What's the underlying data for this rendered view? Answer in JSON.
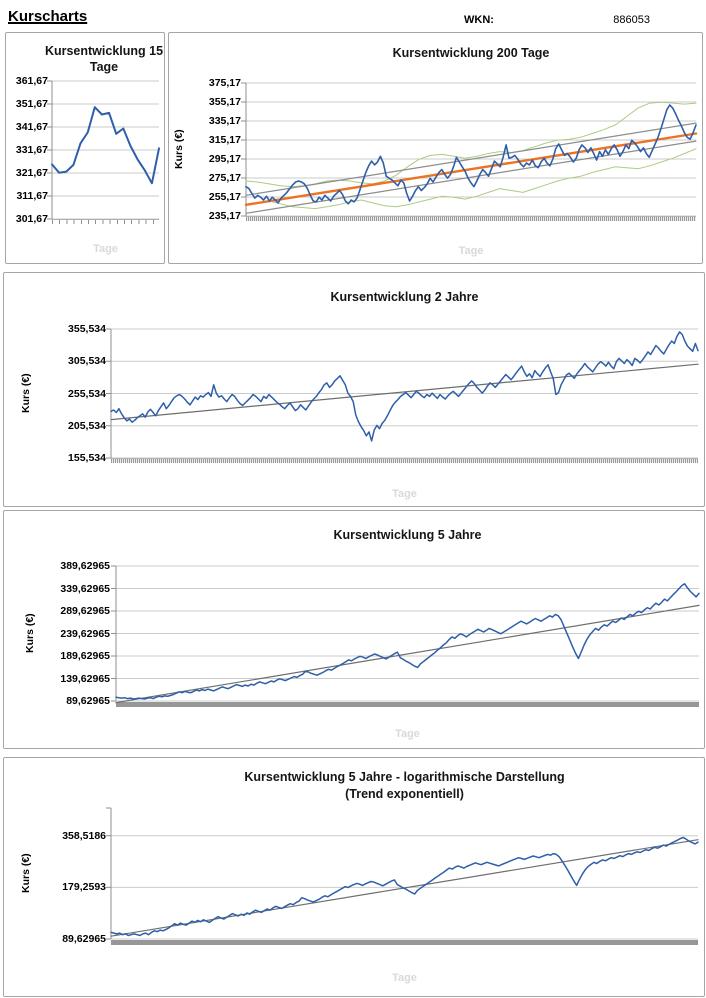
{
  "header": {
    "title": "Kurscharts",
    "wkn_label": "WKN:",
    "wkn_value": "886053"
  },
  "colors": {
    "price_line": "#2E5FA8",
    "trend_orange": "#ED7222",
    "trend_gray": "#6E6E6E",
    "channel_gray": "#8C8C8C",
    "bollinger_green": "#ADCB85",
    "gridline": "#CBCBCB",
    "axis": "#8F8F8F",
    "watermark": "#D9D9D9"
  },
  "chart_data": [
    {
      "type": "line",
      "title": "Kursentwicklung 15 Tage",
      "xlabel": "Tage",
      "ylabel": null,
      "scale": "linear",
      "grid": true,
      "ylim": [
        301.67,
        361.67
      ],
      "yticks": [
        "361,67",
        "351,67",
        "341,67",
        "331,67",
        "321,67",
        "311,67",
        "301,67"
      ],
      "series": [
        {
          "name": "kurs",
          "color": "#2E5FA8",
          "width": 2,
          "values": [
            325.4,
            321.8,
            322.3,
            325.2,
            334.6,
            339.3,
            350.3,
            347.1,
            347.8,
            338.7,
            341.0,
            333.4,
            327.6,
            322.9,
            317.2,
            332.4
          ]
        }
      ]
    },
    {
      "type": "line",
      "title": "Kursentwicklung 200 Tage",
      "xlabel": "Tage",
      "ylabel": "Kurs (€)",
      "scale": "linear",
      "grid": true,
      "ylim": [
        235.17,
        375.17
      ],
      "yticks": [
        "375,17",
        "355,17",
        "335,17",
        "315,17",
        "295,17",
        "275,17",
        "255,17",
        "235,17"
      ],
      "series": [
        {
          "name": "bollinger-oben",
          "color": "#ADCB85",
          "width": 1,
          "values": [
            272,
            271,
            269,
            267,
            266,
            267,
            269,
            272,
            273,
            272,
            270,
            269,
            272,
            278,
            287,
            295,
            299,
            300,
            298,
            296,
            298,
            301,
            303,
            302,
            304,
            308,
            312,
            315,
            316,
            318,
            322,
            326,
            331,
            340,
            349,
            354,
            355,
            354,
            353,
            354
          ]
        },
        {
          "name": "bollinger-unten",
          "color": "#ADCB85",
          "width": 1,
          "values": [
            247,
            249,
            251,
            248,
            245,
            244,
            243,
            245,
            247,
            250,
            252,
            249,
            246,
            245,
            247,
            250,
            253,
            256,
            255,
            253,
            256,
            260,
            264,
            262,
            260,
            264,
            268,
            272,
            275,
            277,
            281,
            284,
            287,
            286,
            285,
            288,
            292,
            296,
            301,
            306
          ]
        },
        {
          "name": "kanal-oben",
          "color": "#8C8C8C",
          "width": 1.2,
          "values": [
            257,
            333
          ]
        },
        {
          "name": "kanal-unten",
          "color": "#8C8C8C",
          "width": 1.2,
          "values": [
            238,
            314
          ]
        },
        {
          "name": "trend",
          "color": "#ED7222",
          "width": 2.4,
          "values": [
            247,
            322
          ]
        },
        {
          "name": "kurs",
          "color": "#2E5FA8",
          "width": 1.6,
          "values": [
            266,
            264,
            259,
            254,
            257,
            255,
            252,
            256,
            251,
            255,
            252,
            249,
            254,
            257,
            260,
            264,
            268,
            271,
            272,
            271,
            269,
            264,
            257,
            251,
            250,
            255,
            252,
            257,
            254,
            251,
            256,
            259,
            262,
            258,
            251,
            248,
            252,
            250,
            254,
            263,
            272,
            281,
            288,
            293,
            289,
            292,
            298,
            291,
            277,
            275,
            273,
            270,
            267,
            273,
            270,
            259,
            251,
            256,
            262,
            266,
            262,
            265,
            269,
            275,
            271,
            276,
            281,
            284,
            279,
            275,
            279,
            287,
            297,
            292,
            287,
            282,
            275,
            270,
            266,
            272,
            279,
            284,
            281,
            277,
            285,
            293,
            290,
            287,
            297,
            310,
            296,
            297,
            299,
            295,
            290,
            287,
            291,
            289,
            294,
            288,
            286,
            292,
            296,
            291,
            288,
            295,
            306,
            311,
            305,
            299,
            301,
            297,
            292,
            296,
            305,
            310,
            307,
            302,
            307,
            301,
            294,
            303,
            298,
            305,
            300,
            306,
            310,
            305,
            298,
            303,
            310,
            306,
            315,
            312,
            308,
            303,
            307,
            301,
            297,
            304,
            311,
            318,
            327,
            337,
            347,
            352,
            349,
            343,
            336,
            330,
            323,
            318,
            316,
            323,
            331
          ]
        }
      ]
    },
    {
      "type": "line",
      "title": "Kursentwicklung 2 Jahre",
      "xlabel": "Tage",
      "ylabel": "Kurs (€)",
      "scale": "linear",
      "grid": true,
      "ylim": [
        155.534,
        355.534
      ],
      "yticks": [
        "355,534",
        "305,534",
        "255,534",
        "205,534",
        "155,534"
      ],
      "series": [
        {
          "name": "trend",
          "color": "#6E6E6E",
          "width": 1.2,
          "values": [
            215,
            301
          ]
        },
        {
          "name": "kurs",
          "color": "#2E5FA8",
          "width": 1.5,
          "values": [
            228,
            230,
            226,
            232,
            224,
            218,
            213,
            216,
            211,
            214,
            218,
            221,
            224,
            219,
            227,
            231,
            226,
            221,
            229,
            235,
            241,
            232,
            237,
            243,
            249,
            252,
            254,
            251,
            247,
            242,
            238,
            244,
            250,
            246,
            252,
            250,
            254,
            257,
            251,
            269,
            256,
            250,
            252,
            247,
            243,
            249,
            254,
            251,
            245,
            240,
            237,
            241,
            245,
            249,
            254,
            251,
            247,
            243,
            251,
            248,
            254,
            250,
            246,
            242,
            239,
            235,
            232,
            237,
            241,
            235,
            229,
            232,
            238,
            234,
            230,
            236,
            242,
            247,
            251,
            257,
            262,
            269,
            272,
            265,
            269,
            275,
            279,
            283,
            276,
            269,
            256,
            251,
            243,
            222,
            212,
            204,
            198,
            190,
            196,
            182,
            199,
            206,
            201,
            209,
            214,
            221,
            229,
            237,
            242,
            246,
            251,
            254,
            257,
            253,
            249,
            254,
            259,
            256,
            252,
            249,
            254,
            251,
            256,
            252,
            248,
            254,
            250,
            247,
            252,
            256,
            259,
            255,
            251,
            256,
            261,
            266,
            271,
            275,
            271,
            265,
            261,
            256,
            261,
            267,
            272,
            269,
            265,
            270,
            275,
            280,
            285,
            281,
            277,
            282,
            288,
            293,
            298,
            289,
            282,
            286,
            280,
            291,
            286,
            282,
            289,
            295,
            300,
            289,
            279,
            254,
            257,
            269,
            277,
            284,
            287,
            283,
            279,
            286,
            291,
            296,
            302,
            297,
            293,
            289,
            295,
            301,
            305,
            302,
            298,
            304,
            298,
            294,
            305,
            310,
            306,
            302,
            308,
            304,
            299,
            310,
            307,
            303,
            308,
            314,
            320,
            316,
            323,
            330,
            326,
            321,
            317,
            324,
            331,
            337,
            333,
            344,
            351,
            347,
            337,
            329,
            325,
            321,
            333,
            322
          ]
        }
      ]
    },
    {
      "type": "line",
      "title": "Kursentwicklung 5 Jahre",
      "xlabel": "Tage",
      "ylabel": "Kurs (€)",
      "scale": "linear",
      "grid": true,
      "ylim": [
        89.62965,
        389.62965
      ],
      "yticks": [
        "389,62965",
        "339,62965",
        "289,62965",
        "239,62965",
        "189,62965",
        "139,62965",
        "89,62965"
      ],
      "series": [
        {
          "name": "trend",
          "color": "#6E6E6E",
          "width": 1.2,
          "values": [
            86,
            302
          ]
        },
        {
          "name": "kurs",
          "color": "#2E5FA8",
          "width": 1.5,
          "values": [
            98,
            97,
            96,
            97,
            95,
            96,
            94,
            95,
            96,
            95,
            94,
            96,
            97,
            95,
            98,
            100,
            99,
            101,
            100,
            102,
            104,
            107,
            110,
            108,
            111,
            109,
            108,
            111,
            114,
            112,
            115,
            113,
            116,
            114,
            112,
            115,
            118,
            121,
            119,
            117,
            120,
            123,
            126,
            124,
            122,
            125,
            123,
            127,
            125,
            129,
            132,
            130,
            128,
            131,
            134,
            132,
            136,
            139,
            137,
            135,
            138,
            141,
            144,
            142,
            146,
            149,
            156,
            154,
            151,
            149,
            147,
            150,
            153,
            157,
            160,
            158,
            162,
            166,
            169,
            173,
            177,
            181,
            179,
            183,
            186,
            189,
            187,
            184,
            188,
            191,
            194,
            192,
            189,
            186,
            183,
            187,
            191,
            195,
            198,
            186,
            182,
            178,
            175,
            171,
            167,
            164,
            172,
            177,
            182,
            187,
            192,
            197,
            203,
            208,
            214,
            219,
            226,
            232,
            229,
            235,
            239,
            236,
            232,
            237,
            241,
            245,
            249,
            246,
            243,
            247,
            251,
            248,
            245,
            242,
            239,
            243,
            247,
            251,
            255,
            259,
            263,
            267,
            264,
            261,
            265,
            269,
            273,
            270,
            267,
            271,
            275,
            279,
            276,
            282,
            279,
            270,
            255,
            240,
            225,
            210,
            196,
            184,
            199,
            214,
            227,
            237,
            244,
            251,
            247,
            254,
            259,
            256,
            262,
            267,
            264,
            269,
            274,
            271,
            277,
            282,
            279,
            285,
            289,
            286,
            292,
            297,
            294,
            301,
            307,
            303,
            309,
            316,
            312,
            319,
            326,
            332,
            339,
            346,
            350,
            341,
            333,
            327,
            321,
            329
          ]
        }
      ]
    },
    {
      "type": "line",
      "title": "Kursentwicklung 5 Jahre - logarithmische Darstellung",
      "subtitle": "(Trend exponentiell)",
      "xlabel": "Tage",
      "ylabel": "Kurs (€)",
      "scale": "log",
      "grid": true,
      "ylim": [
        89.62965,
        520
      ],
      "yticks": [
        {
          "label": "358,5186",
          "value": 358.5186
        },
        {
          "label": "179,2593",
          "value": 179.2593
        },
        {
          "label": "89,62965",
          "value": 89.62965
        }
      ],
      "series": [
        {
          "name": "trend-exponentiell",
          "color": "#6E6E6E",
          "width": 1.2,
          "values": [
            93,
            340
          ]
        },
        {
          "name": "kurs",
          "color": "#2E5FA8",
          "width": 1.5,
          "ref": [
            3,
            1
          ]
        }
      ]
    }
  ]
}
